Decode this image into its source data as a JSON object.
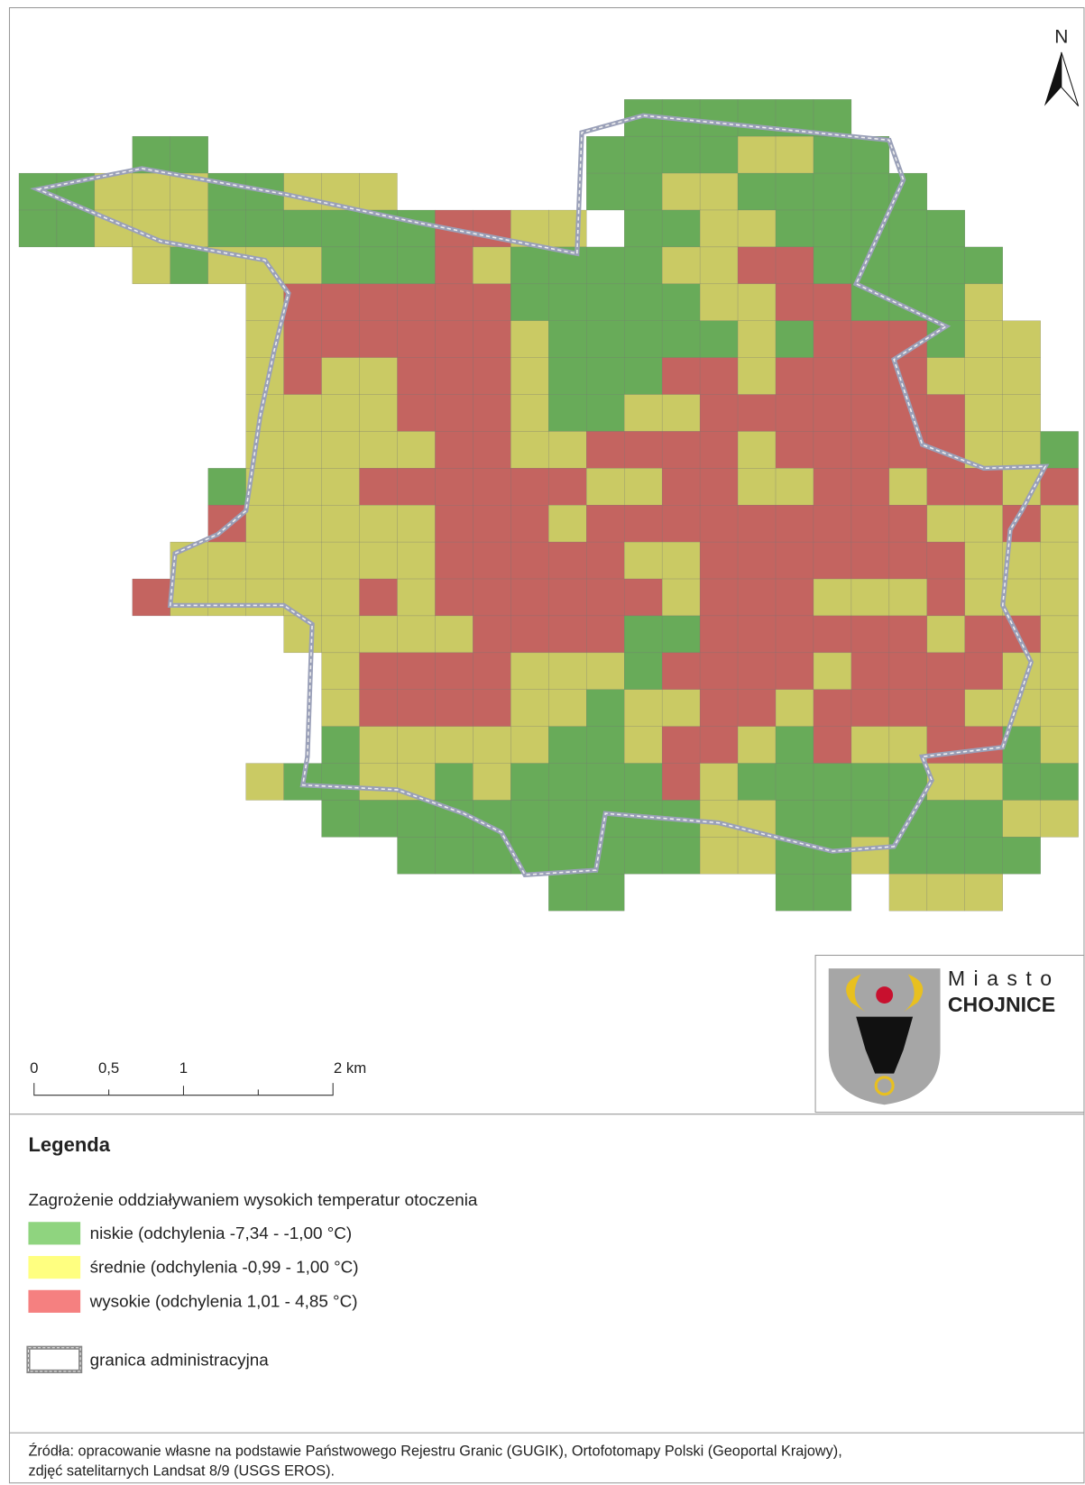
{
  "map": {
    "north": "N",
    "scale_labels": [
      "0",
      "0,5",
      "1",
      "2 km"
    ],
    "logo": {
      "line1": "Miasto",
      "line2": "CHOJNICE"
    }
  },
  "legend": {
    "title": "Legenda",
    "subtitle": "Zagrożenie oddziaływaniem wysokich temperatur otoczenia",
    "items": [
      {
        "label": "niskie (odchylenia -7,34 - -1,00 °C)",
        "color": "#8fd47f"
      },
      {
        "label": "średnie (odchylenia -0,99 - 1,00 °C)",
        "color": "#ffff80"
      },
      {
        "label": "wysokie (odchylenia 1,01 - 4,85 °C)",
        "color": "#f58080"
      }
    ],
    "boundary": "granica administracyjna"
  },
  "source": {
    "line1": "Źródła: opracowanie własne na podstawie Państwowego Rejestru Granic (GUGIK), Ortofotomapy Polski (Geoportal Krajowy),",
    "line2": "zdjęć satelitarnych Landsat 8/9 (USGS EROS)."
  }
}
